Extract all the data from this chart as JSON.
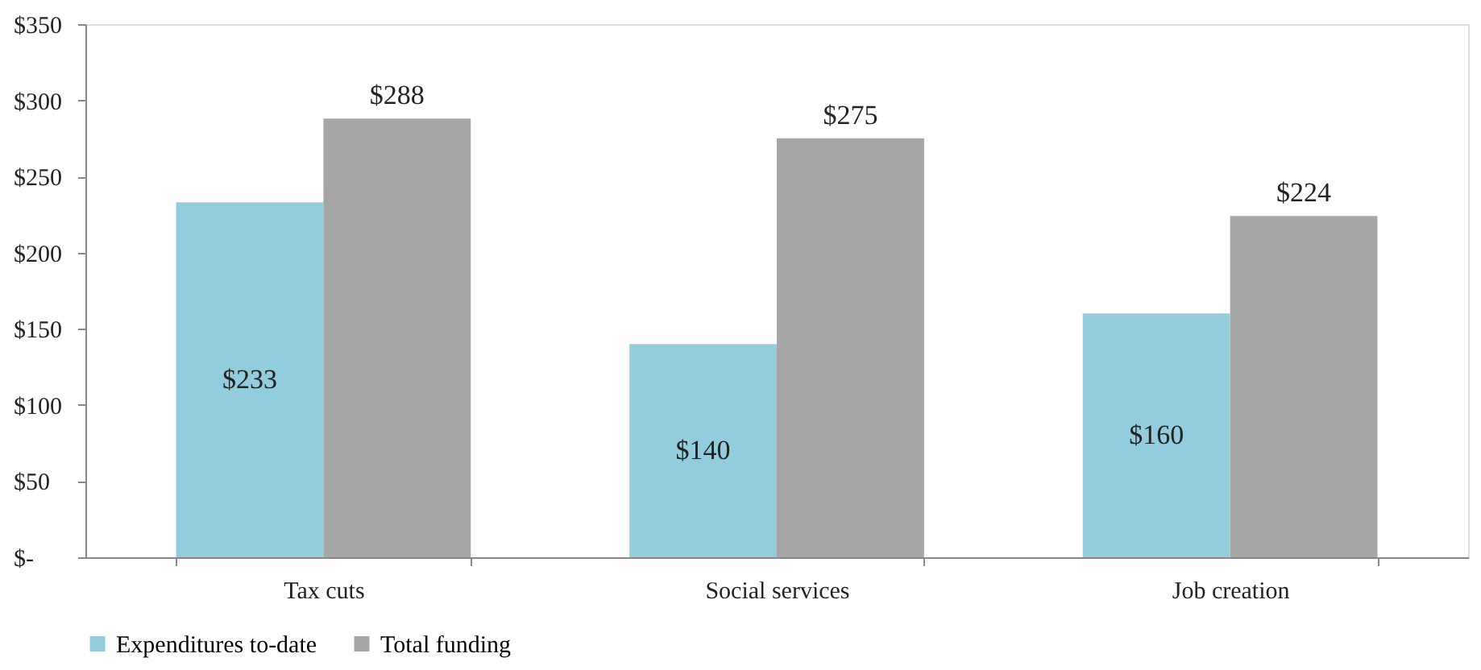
{
  "chart_data": {
    "type": "bar",
    "categories": [
      "Tax cuts",
      "Social services",
      "Job creation"
    ],
    "series": [
      {
        "name": "Expenditures to-date",
        "color": "#93cddd",
        "values": [
          233,
          140,
          160
        ],
        "value_labels": [
          "$233",
          "$140",
          "$160"
        ]
      },
      {
        "name": "Total funding",
        "color": "#a6a6a6",
        "values": [
          288,
          275,
          224
        ],
        "value_labels": [
          "$288",
          "$275",
          "$224"
        ]
      }
    ],
    "ylim": [
      0,
      350
    ],
    "yticks": [
      {
        "value": 0,
        "label": "$-"
      },
      {
        "value": 50,
        "label": "$50"
      },
      {
        "value": 100,
        "label": "$100"
      },
      {
        "value": 150,
        "label": "$150"
      },
      {
        "value": 200,
        "label": "$200"
      },
      {
        "value": 250,
        "label": "$250"
      },
      {
        "value": 300,
        "label": "$300"
      },
      {
        "value": 350,
        "label": "$350"
      }
    ],
    "grid": false,
    "legend": "bottom"
  }
}
